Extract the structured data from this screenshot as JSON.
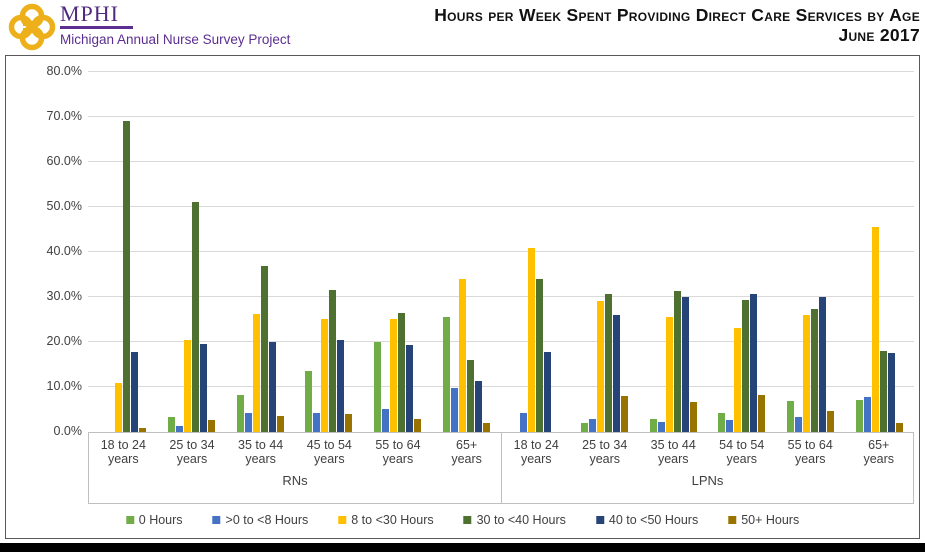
{
  "header": {
    "logo": {
      "acronym": "MPHI",
      "subtitle": "Michigan Annual Nurse Survey Project"
    },
    "title_line1": "Hours per Week Spent Providing Direct Care Services by Age",
    "title_line2": "June 2017"
  },
  "chart_data": {
    "type": "bar",
    "title": "Hours per Week Spent Providing Direct Care Services by Age",
    "subtitle": "June 2017",
    "xlabel": "",
    "ylabel": "",
    "ylim": [
      0,
      80
    ],
    "grid": true,
    "legend_position": "bottom",
    "yticks": [
      0,
      10,
      20,
      30,
      40,
      50,
      60,
      70,
      80
    ],
    "ytick_labels": [
      "0.0%",
      "10.0%",
      "20.0%",
      "30.0%",
      "40.0%",
      "50.0%",
      "60.0%",
      "70.0%",
      "80.0%"
    ],
    "groups": [
      {
        "label": "RNs",
        "categories": [
          {
            "top": "18 to 24",
            "bottom": "years"
          },
          {
            "top": "25 to 34",
            "bottom": "years"
          },
          {
            "top": "35 to 44",
            "bottom": "years"
          },
          {
            "top": "45 to 54",
            "bottom": "years"
          },
          {
            "top": "55 to 64",
            "bottom": "years"
          },
          {
            "top": "65+",
            "bottom": "years"
          }
        ]
      },
      {
        "label": "LPNs",
        "categories": [
          {
            "top": "18 to 24",
            "bottom": "years"
          },
          {
            "top": "25 to 34",
            "bottom": "years"
          },
          {
            "top": "35 to 44",
            "bottom": "years"
          },
          {
            "top": "54 to 54",
            "bottom": "years"
          },
          {
            "top": "55 to 64",
            "bottom": "years"
          },
          {
            "top": "65+",
            "bottom": "years"
          }
        ]
      }
    ],
    "series": [
      {
        "name": "0 Hours",
        "color": "#70AD47",
        "values": [
          0,
          3.4,
          8.3,
          13.6,
          19.9,
          25.6,
          0,
          2.0,
          3.0,
          4.3,
          7.0,
          7.2
        ]
      },
      {
        "name": ">0 to <8 Hours",
        "color": "#4472C4",
        "values": [
          0,
          1.4,
          4.2,
          4.3,
          5.2,
          9.7,
          4.3,
          2.9,
          2.3,
          2.7,
          3.4,
          7.8
        ]
      },
      {
        "name": "8 to <30 Hours",
        "color": "#FFC000",
        "values": [
          11.0,
          20.5,
          26.3,
          25.1,
          25.2,
          34.1,
          41.0,
          29.1,
          25.5,
          23.1,
          25.9,
          45.6
        ]
      },
      {
        "name": "30 to <40 Hours",
        "color": "#4E7031",
        "values": [
          69.1,
          51.2,
          37.0,
          31.6,
          26.5,
          15.9,
          33.9,
          30.7,
          31.3,
          29.3,
          27.3,
          18.1
        ]
      },
      {
        "name": "40 to <50 Hours",
        "color": "#264478",
        "values": [
          17.7,
          19.5,
          19.9,
          20.5,
          19.4,
          11.3,
          17.8,
          26.1,
          30.0,
          30.7,
          29.9,
          17.5
        ]
      },
      {
        "name": "50+ Hours",
        "color": "#997300",
        "values": [
          0.9,
          2.6,
          3.6,
          4.1,
          3.0,
          1.9,
          0,
          7.9,
          6.7,
          8.2,
          4.7,
          1.9
        ]
      }
    ]
  }
}
